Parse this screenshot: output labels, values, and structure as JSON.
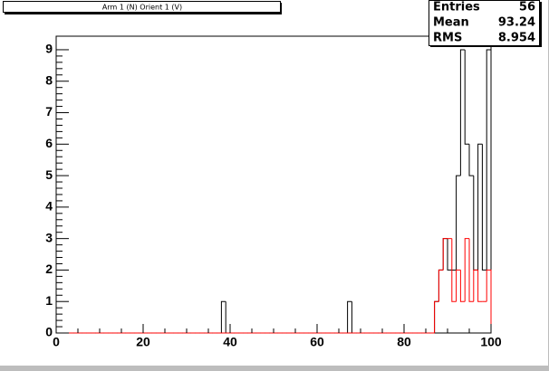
{
  "chart_data": {
    "type": "histogram",
    "title": "Arm 1 (N) Orient 1 (V)",
    "bins": [
      0,
      1,
      2,
      3,
      4,
      5,
      6,
      7,
      8,
      9,
      10,
      11,
      12,
      13,
      14,
      15,
      16,
      17,
      18,
      19,
      20,
      21,
      22,
      23,
      24,
      25,
      26,
      27,
      28,
      29,
      30,
      31,
      32,
      33,
      34,
      35,
      36,
      37,
      38,
      39,
      40,
      41,
      42,
      43,
      44,
      45,
      46,
      47,
      48,
      49,
      50,
      51,
      52,
      53,
      54,
      55,
      56,
      57,
      58,
      59,
      60,
      61,
      62,
      63,
      64,
      65,
      66,
      67,
      68,
      69,
      70,
      71,
      72,
      73,
      74,
      75,
      76,
      77,
      78,
      79,
      80,
      81,
      82,
      83,
      84,
      85,
      86,
      87,
      88,
      89,
      90,
      91,
      92,
      93,
      94,
      95,
      96,
      97,
      98,
      99,
      100
    ],
    "series": [
      {
        "color": "#000000",
        "values": [
          0,
          0,
          0,
          0,
          0,
          0,
          0,
          0,
          0,
          0,
          0,
          0,
          0,
          0,
          0,
          0,
          0,
          0,
          0,
          0,
          0,
          0,
          0,
          0,
          0,
          0,
          0,
          0,
          0,
          0,
          0,
          0,
          0,
          0,
          0,
          0,
          0,
          0,
          1,
          0,
          0,
          0,
          0,
          0,
          0,
          0,
          0,
          0,
          0,
          0,
          0,
          0,
          0,
          0,
          0,
          0,
          0,
          0,
          0,
          0,
          0,
          0,
          0,
          0,
          0,
          0,
          0,
          1,
          0,
          0,
          0,
          0,
          0,
          0,
          0,
          0,
          0,
          0,
          0,
          0,
          0,
          0,
          0,
          0,
          0,
          0,
          0,
          1,
          2,
          3,
          2,
          2,
          5,
          9,
          6,
          5,
          2,
          6,
          2,
          9
        ]
      },
      {
        "color": "#ff0000",
        "values": [
          0,
          0,
          0,
          0,
          0,
          0,
          0,
          0,
          0,
          0,
          0,
          0,
          0,
          0,
          0,
          0,
          0,
          0,
          0,
          0,
          0,
          0,
          0,
          0,
          0,
          0,
          0,
          0,
          0,
          0,
          0,
          0,
          0,
          0,
          0,
          0,
          0,
          0,
          0,
          0,
          0,
          0,
          0,
          0,
          0,
          0,
          0,
          0,
          0,
          0,
          0,
          0,
          0,
          0,
          0,
          0,
          0,
          0,
          0,
          0,
          0,
          0,
          0,
          0,
          0,
          0,
          0,
          0,
          0,
          0,
          0,
          0,
          0,
          0,
          0,
          0,
          0,
          0,
          0,
          0,
          0,
          0,
          0,
          0,
          0,
          0,
          0,
          1,
          2,
          3,
          3,
          1,
          2,
          1,
          3,
          1,
          2,
          1,
          1,
          2
        ]
      }
    ],
    "xlim": [
      0,
      100
    ],
    "xticks": [
      0,
      20,
      40,
      60,
      80,
      100
    ],
    "ylim": [
      0,
      9.43
    ],
    "yticks": [
      0,
      1,
      2,
      3,
      4,
      5,
      6,
      7,
      8,
      9
    ],
    "stats": {
      "labels": [
        "Entries",
        "Mean",
        "RMS"
      ],
      "values": [
        56,
        93.24,
        8.954
      ]
    }
  }
}
